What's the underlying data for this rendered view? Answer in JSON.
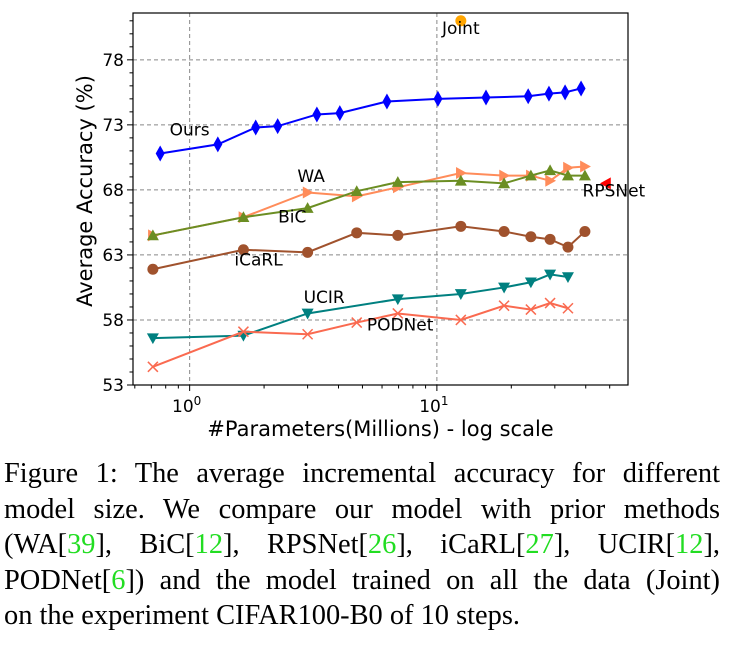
{
  "chart_data": {
    "type": "line",
    "title": "",
    "xlabel": "#Parameters(Millions) - log scale",
    "ylabel": "Average Accuracy (%)",
    "xscale": "log",
    "xlim": [
      0.59,
      59.3
    ],
    "ylim": [
      53,
      81.6
    ],
    "xticks": [
      {
        "value": 1,
        "label": "10^0"
      },
      {
        "value": 10,
        "label": "10^1"
      }
    ],
    "yticks": [
      53,
      58,
      63,
      68,
      73,
      78
    ],
    "grid": true,
    "legend": "none (inline labels)",
    "series": [
      {
        "name": "Ours",
        "color": "#0000ff",
        "marker": "diamond",
        "x": [
          0.76,
          1.3,
          1.85,
          2.27,
          3.27,
          4.05,
          6.28,
          10.1,
          15.8,
          23.4,
          28.4,
          33.0,
          38.3
        ],
        "y": [
          70.8,
          71.5,
          72.8,
          72.9,
          73.8,
          73.9,
          74.8,
          75.0,
          75.1,
          75.2,
          75.4,
          75.5,
          75.8
        ]
      },
      {
        "name": "WA",
        "color": "#ff8c5a",
        "marker": "triangle-right",
        "x": [
          0.71,
          1.65,
          3.0,
          4.74,
          6.95,
          12.5,
          18.7,
          24.0,
          28.7,
          33.9,
          39.7
        ],
        "y": [
          64.5,
          65.9,
          67.8,
          67.5,
          68.2,
          69.3,
          69.1,
          69.1,
          68.7,
          69.7,
          69.8
        ]
      },
      {
        "name": "BiC",
        "color": "#6b8e23",
        "marker": "triangle-up",
        "x": [
          0.71,
          1.65,
          3.0,
          4.74,
          6.95,
          12.5,
          18.7,
          24.0,
          28.7,
          33.9,
          39.7
        ],
        "y": [
          64.5,
          65.9,
          66.6,
          67.9,
          68.6,
          68.7,
          68.5,
          69.1,
          69.5,
          69.1,
          69.1
        ]
      },
      {
        "name": "RPSNet",
        "color": "#ff0000",
        "marker": "triangle-left",
        "x": [
          48.3
        ],
        "y": [
          68.5
        ]
      },
      {
        "name": "iCaRL",
        "color": "#a0522d",
        "marker": "circle",
        "x": [
          0.71,
          1.65,
          3.0,
          4.74,
          6.95,
          12.5,
          18.7,
          24.0,
          28.7,
          33.9,
          39.7
        ],
        "y": [
          61.9,
          63.4,
          63.2,
          64.7,
          64.5,
          65.2,
          64.8,
          64.4,
          64.2,
          63.6,
          64.8
        ]
      },
      {
        "name": "UCIR",
        "color": "#008080",
        "marker": "triangle-down",
        "x": [
          0.71,
          1.65,
          3.0,
          6.95,
          12.5,
          18.7,
          24.0,
          28.7,
          33.9
        ],
        "y": [
          56.6,
          56.8,
          58.5,
          59.6,
          60.0,
          60.5,
          60.9,
          61.5,
          61.3
        ]
      },
      {
        "name": "PODNet",
        "color": "#fa6a50",
        "marker": "x",
        "x": [
          0.71,
          1.65,
          3.0,
          4.74,
          6.95,
          12.5,
          18.7,
          24.0,
          28.7,
          33.9
        ],
        "y": [
          54.4,
          57.1,
          56.9,
          57.8,
          58.5,
          58.0,
          59.1,
          58.8,
          59.3,
          58.9
        ]
      },
      {
        "name": "Joint",
        "color": "#ffa500",
        "marker": "circle",
        "x": [
          12.5
        ],
        "y": [
          81.0
        ]
      }
    ],
    "annotations": [
      {
        "text": "Ours",
        "x": 1.0,
        "y": 72.2
      },
      {
        "text": "WA",
        "x": 3.1,
        "y": 68.6
      },
      {
        "text": "BiC",
        "x": 2.6,
        "y": 65.5
      },
      {
        "text": "RPSNet",
        "x": 52.0,
        "y": 67.5
      },
      {
        "text": "iCaRL",
        "x": 1.9,
        "y": 62.2
      },
      {
        "text": "UCIR",
        "x": 3.5,
        "y": 59.3
      },
      {
        "text": "PODNet",
        "x": 7.1,
        "y": 57.2
      },
      {
        "text": "Joint",
        "x": 12.5,
        "y": 80.0
      }
    ]
  },
  "caption": {
    "lines": [
      [
        {
          "t": "Figure 1: The average incremental accuracy for different"
        }
      ],
      [
        {
          "t": "model size.  We compare our model with prior methods"
        }
      ],
      [
        {
          "t": "(WA["
        },
        {
          "t": "39",
          "cite": true
        },
        {
          "t": "], BiC["
        },
        {
          "t": "12",
          "cite": true
        },
        {
          "t": "], RPSNet["
        },
        {
          "t": "26",
          "cite": true
        },
        {
          "t": "], iCaRL["
        },
        {
          "t": "27",
          "cite": true
        },
        {
          "t": "], UCIR["
        },
        {
          "t": "12",
          "cite": true
        },
        {
          "t": "],"
        }
      ],
      [
        {
          "t": "PODNet["
        },
        {
          "t": "6",
          "cite": true
        },
        {
          "t": "]) and the model trained on all the data (Joint)"
        }
      ],
      [
        {
          "t": "on the experiment CIFAR100-B0 of 10 steps."
        }
      ]
    ]
  }
}
